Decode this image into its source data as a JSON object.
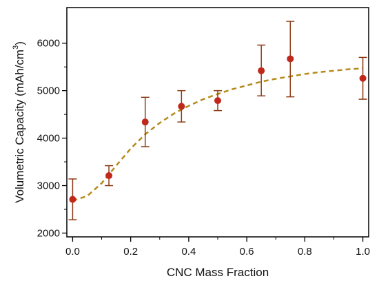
{
  "chart_data": {
    "type": "scatter",
    "title": "",
    "xlabel": "CNC Mass Fraction",
    "ylabel": "Volumetric Capacity (mAh/cm",
    "ylabel_superscript": "3",
    "ylabel_close": ")",
    "xlim": [
      -0.02,
      1.02
    ],
    "ylim": [
      1920,
      6750
    ],
    "x_ticks": [
      0.0,
      0.2,
      0.4,
      0.6,
      0.8,
      1.0
    ],
    "x_tick_labels": [
      "0.0",
      "0.2",
      "0.4",
      "0.6",
      "0.8",
      "1.0"
    ],
    "y_ticks": [
      2000,
      3000,
      4000,
      5000,
      6000
    ],
    "y_tick_labels": [
      "2000",
      "3000",
      "4000",
      "5000",
      "6000"
    ],
    "grid": false,
    "series": [
      {
        "x": [
          0.0,
          0.125,
          0.25,
          0.375,
          0.5,
          0.65,
          0.75,
          1.0
        ],
        "y": [
          2710,
          3210,
          4340,
          4670,
          4790,
          5420,
          5670,
          5260
        ],
        "y_upper": [
          3140,
          3420,
          4860,
          5000,
          5000,
          5960,
          6460,
          5700
        ],
        "y_lower": [
          2280,
          3000,
          3820,
          4340,
          4580,
          4890,
          4870,
          4820
        ],
        "marker_color": "#c0281b",
        "errorbar_color": "#8b3a14"
      }
    ],
    "fit_curve": {
      "x": [
        0.0,
        0.05,
        0.1,
        0.15,
        0.2,
        0.25,
        0.3,
        0.35,
        0.4,
        0.45,
        0.5,
        0.55,
        0.6,
        0.65,
        0.7,
        0.75,
        0.8,
        0.85,
        0.9,
        0.95,
        1.0
      ],
      "y": [
        2680,
        2780,
        3050,
        3420,
        3780,
        4080,
        4320,
        4520,
        4680,
        4820,
        4930,
        5030,
        5110,
        5190,
        5250,
        5300,
        5350,
        5390,
        5420,
        5450,
        5470
      ],
      "color": "#b58a1c",
      "style": "dashed"
    }
  }
}
